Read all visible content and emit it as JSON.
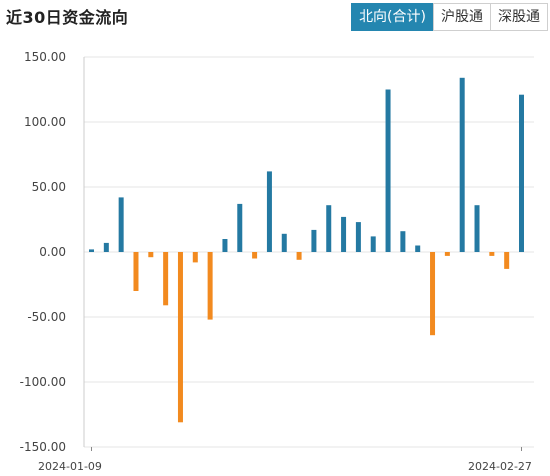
{
  "header": {
    "title": "近30日资金流向",
    "tabs": [
      {
        "label": "北向(合计)",
        "active": true
      },
      {
        "label": "沪股通",
        "active": false
      },
      {
        "label": "深股通",
        "active": false
      }
    ]
  },
  "colors": {
    "positive": "#2479a2",
    "negative": "#f28a1f",
    "accent": "#2486b0",
    "grid": "#e6e6e6"
  },
  "chart_data": {
    "type": "bar",
    "x_start": "2024-01-09",
    "x_end": "2024-02-27",
    "ylim": [
      -150,
      150
    ],
    "yticks": [
      150,
      100,
      50,
      0,
      -50,
      -100,
      -150
    ],
    "ytick_labels": [
      "150.00",
      "100.00",
      "50.00",
      "0.00",
      "-50.00",
      "-100.00",
      "-150.00"
    ],
    "xtick_labels": [
      "2024-01-09",
      "2024-02-27"
    ],
    "values": [
      2,
      7,
      42,
      -30,
      -4,
      -41,
      -131,
      -8,
      -52,
      10,
      37,
      -5,
      62,
      14,
      -6,
      17,
      36,
      27,
      23,
      12,
      125,
      16,
      5,
      -64,
      -3,
      134,
      36,
      -3,
      -13,
      121
    ]
  }
}
